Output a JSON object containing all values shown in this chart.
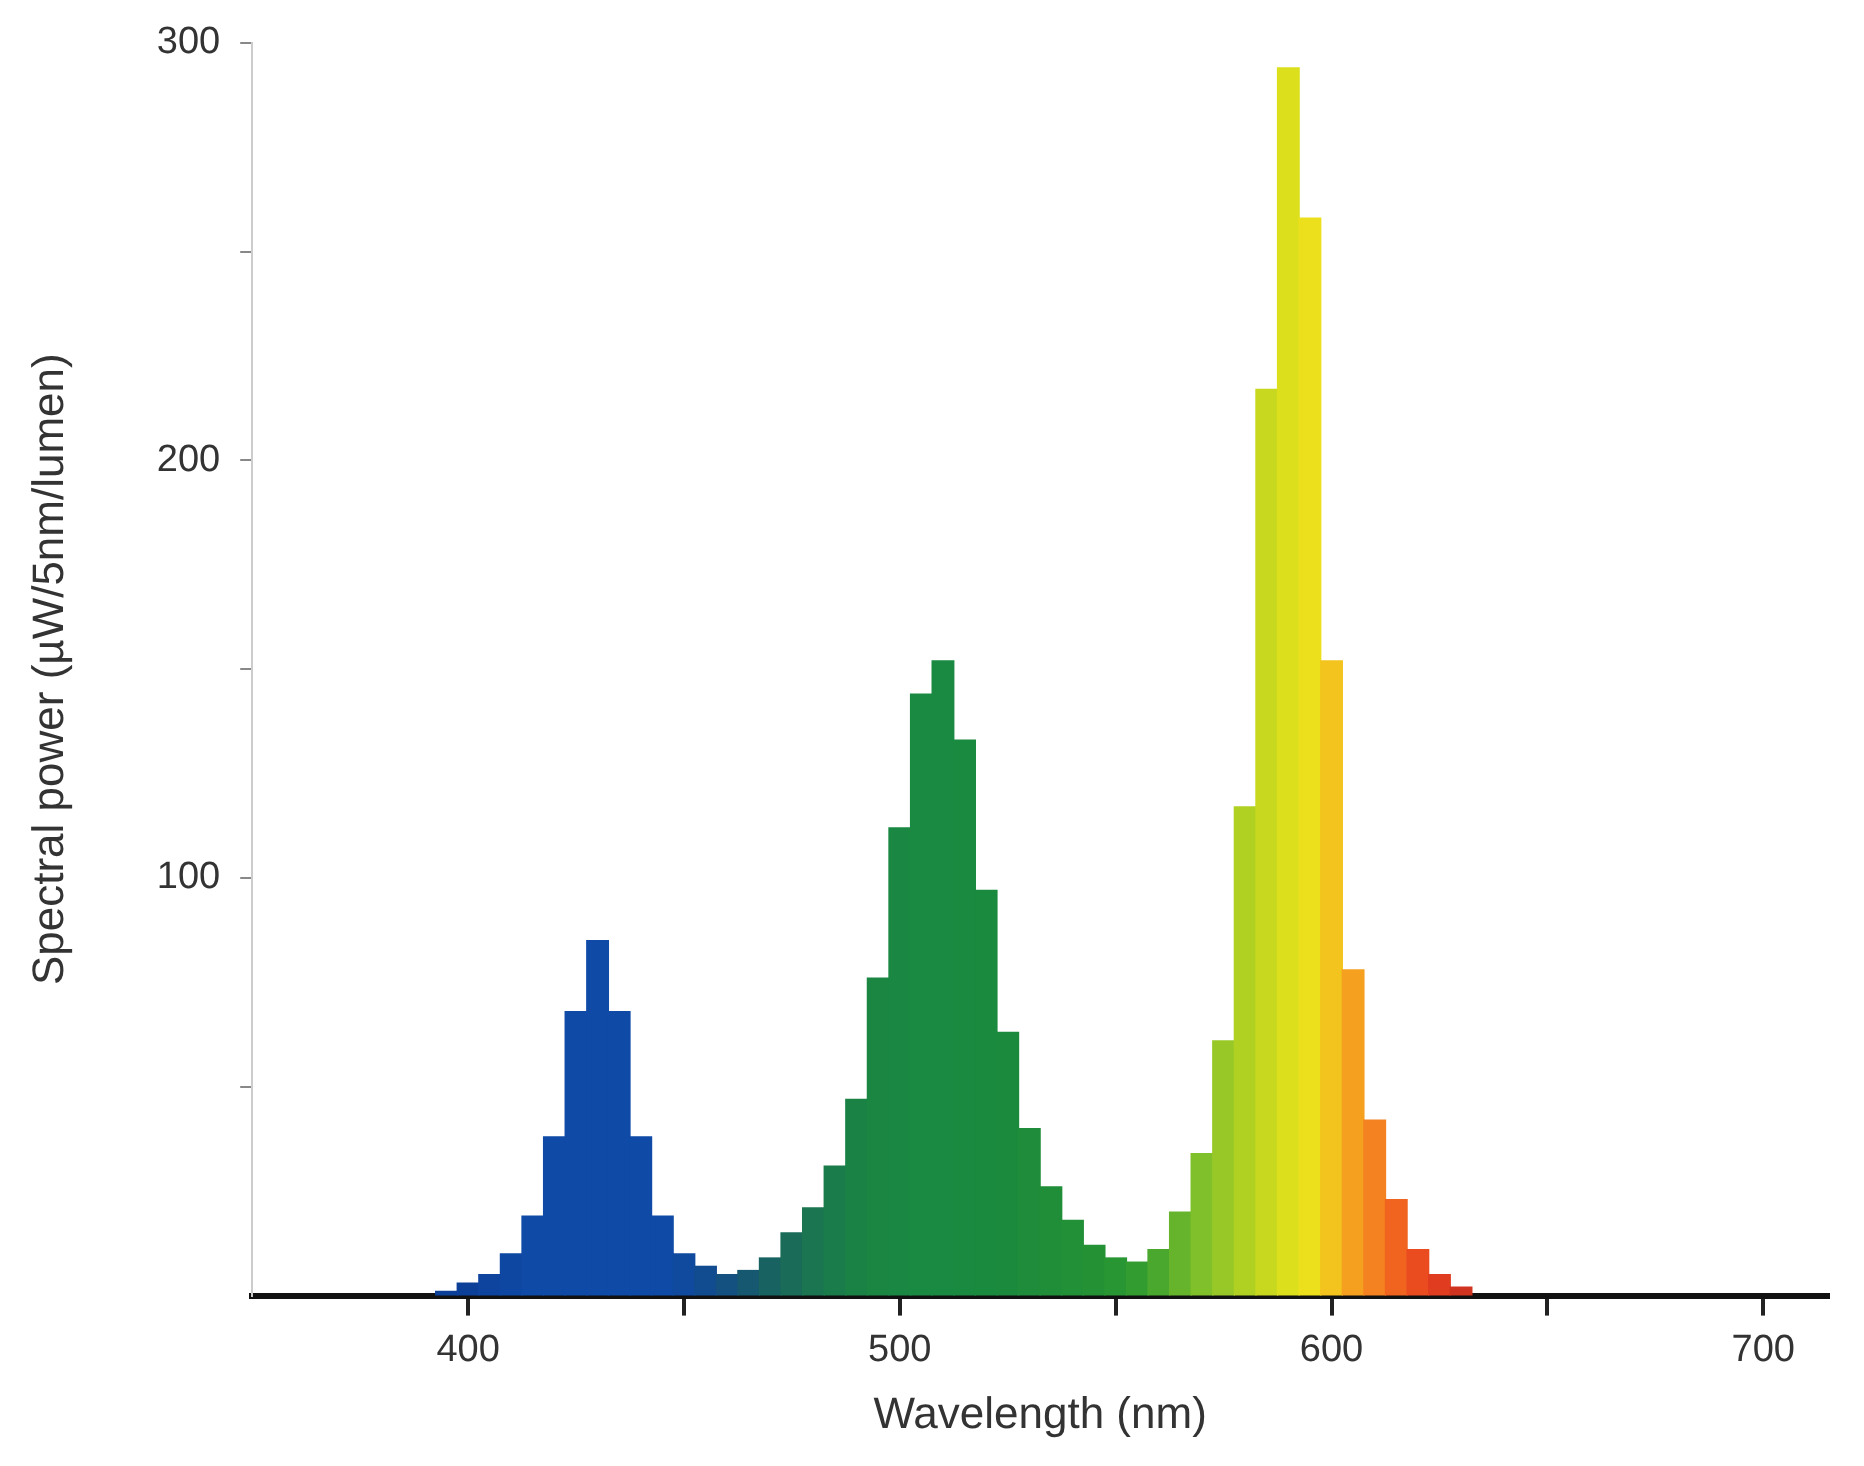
{
  "chart_data": {
    "type": "histogram",
    "xlabel": "Wavelength (nm)",
    "ylabel": "Spectral power (µW/5nm/lumen)",
    "bins": [
      392.5,
      397.5,
      402.5,
      407.5,
      412.5,
      417.5,
      422.5,
      427.5,
      432.5,
      437.5,
      442.5,
      447.5,
      452.5,
      457.5,
      462.5,
      467.5,
      472.5,
      477.5,
      482.5,
      487.5,
      492.5,
      497.5,
      502.5,
      507.5,
      512.5,
      517.5,
      522.5,
      527.5,
      532.5,
      537.5,
      542.5,
      547.5,
      552.5,
      557.5,
      562.5,
      567.5,
      572.5,
      577.5,
      582.5,
      587.5,
      592.5,
      597.5,
      602.5,
      607.5,
      612.5,
      617.5,
      622.5,
      627.5,
      632.5
    ],
    "values": [
      1,
      3,
      5,
      10,
      19,
      38,
      68,
      85,
      68,
      38,
      19,
      10,
      7,
      5,
      6,
      9,
      15,
      21,
      31,
      47,
      76,
      112,
      144,
      152,
      133,
      97,
      63,
      40,
      26,
      18,
      12,
      9,
      8,
      11,
      20,
      34,
      61,
      117,
      217,
      294,
      258,
      152,
      78,
      42,
      23,
      11,
      5,
      2
    ],
    "colors": [
      "#0c3f98",
      "#0c3f98",
      "#0e449e",
      "#0e47a2",
      "#0e4aa6",
      "#0e4aa6",
      "#0e4aa6",
      "#0e4aa6",
      "#0e4aa6",
      "#0e4aa6",
      "#0e4aa6",
      "#0f4a9e",
      "#124c90",
      "#145080",
      "#165870",
      "#186262",
      "#1a6c58",
      "#1a7550",
      "#1a7c4a",
      "#1a8245",
      "#1a8642",
      "#1a8842",
      "#1a8a42",
      "#1a8a42",
      "#1a8a40",
      "#1a8a3e",
      "#1c8a3c",
      "#1e8c3a",
      "#208e38",
      "#229036",
      "#249234",
      "#289632",
      "#329c30",
      "#4aa82e",
      "#66b42c",
      "#80c02a",
      "#98c828",
      "#b0d022",
      "#c8d81e",
      "#dce01c",
      "#ece01c",
      "#f4c41e",
      "#f6a020",
      "#f48220",
      "#f06420",
      "#ea4c20",
      "#e03c20",
      "#d03420"
    ],
    "xlim": [
      350,
      715
    ],
    "xticks": [
      400,
      {
        "value": 450,
        "label": null
      },
      500,
      {
        "value": 550,
        "label": null
      },
      600,
      {
        "value": 650,
        "label": null
      },
      700
    ],
    "ylim": [
      0,
      300
    ],
    "yticks": [
      {
        "value": 50,
        "label": null
      },
      100,
      {
        "value": 150,
        "label": null
      },
      200,
      {
        "value": 250,
        "label": null
      },
      300
    ]
  }
}
